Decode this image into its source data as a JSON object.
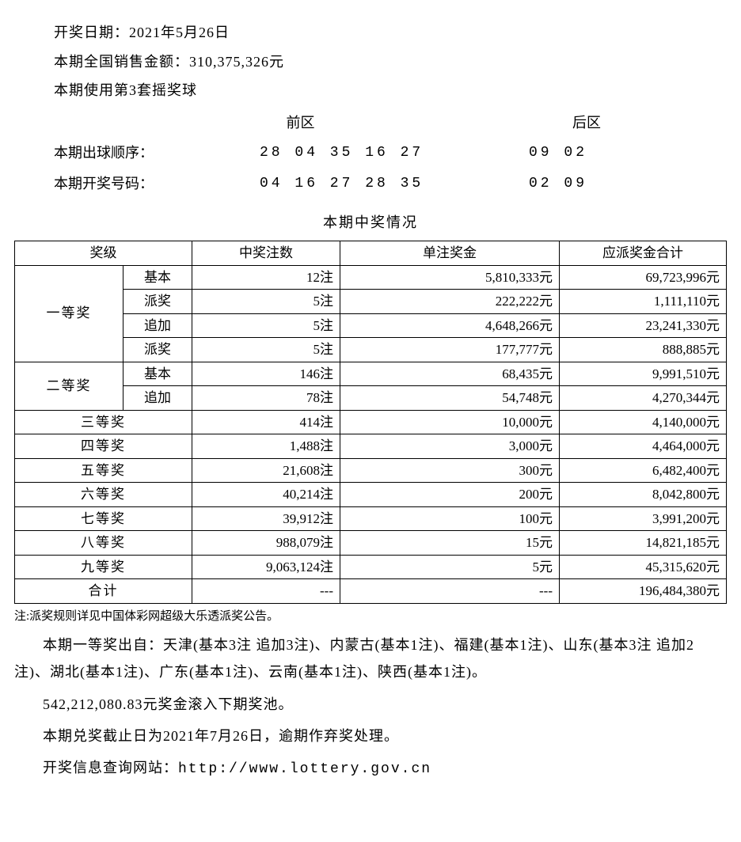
{
  "header": {
    "draw_date_label": "开奖日期：",
    "draw_date_value": "2021年5月26日",
    "sales_label": "本期全国销售金额：",
    "sales_value": "310,375,326元",
    "ballset_line": "本期使用第3套摇奖球"
  },
  "numbers": {
    "front_header": "前区",
    "back_header": "后区",
    "order_label": "本期出球顺序：",
    "order_front": "28 04 35 16 27",
    "order_back": "09 02",
    "result_label": "本期开奖号码：",
    "result_front": "04 16 27 28 35",
    "result_back": "02 09"
  },
  "section_title": "本期中奖情况",
  "table": {
    "headers": {
      "level": "奖级",
      "count": "中奖注数",
      "per": "单注奖金",
      "total": "应派奖金合计"
    },
    "rows": [
      {
        "main": "一等奖",
        "sub": "基本",
        "count": "12注",
        "per": "5,810,333元",
        "total": "69,723,996元",
        "mainRowspan": 4
      },
      {
        "sub": "派奖",
        "count": "5注",
        "per": "222,222元",
        "total": "1,111,110元"
      },
      {
        "sub": "追加",
        "count": "5注",
        "per": "4,648,266元",
        "total": "23,241,330元"
      },
      {
        "sub": "派奖",
        "count": "5注",
        "per": "177,777元",
        "total": "888,885元"
      },
      {
        "main": "二等奖",
        "sub": "基本",
        "count": "146注",
        "per": "68,435元",
        "total": "9,991,510元",
        "mainRowspan": 2
      },
      {
        "sub": "追加",
        "count": "78注",
        "per": "54,748元",
        "total": "4,270,344元"
      },
      {
        "main": "三等奖",
        "colspan": 2,
        "count": "414注",
        "per": "10,000元",
        "total": "4,140,000元"
      },
      {
        "main": "四等奖",
        "colspan": 2,
        "count": "1,488注",
        "per": "3,000元",
        "total": "4,464,000元"
      },
      {
        "main": "五等奖",
        "colspan": 2,
        "count": "21,608注",
        "per": "300元",
        "total": "6,482,400元"
      },
      {
        "main": "六等奖",
        "colspan": 2,
        "count": "40,214注",
        "per": "200元",
        "total": "8,042,800元"
      },
      {
        "main": "七等奖",
        "colspan": 2,
        "count": "39,912注",
        "per": "100元",
        "total": "3,991,200元"
      },
      {
        "main": "八等奖",
        "colspan": 2,
        "count": "988,079注",
        "per": "15元",
        "total": "14,821,185元"
      },
      {
        "main": "九等奖",
        "colspan": 2,
        "count": "9,063,124注",
        "per": "5元",
        "total": "45,315,620元"
      },
      {
        "main": "合计",
        "colspan": 2,
        "count": "---",
        "per": "---",
        "total": "196,484,380元"
      }
    ]
  },
  "footnote": "注:派奖规则详见中国体彩网超级大乐透派奖公告。",
  "paragraphs": {
    "winners": "本期一等奖出自：天津(基本3注 追加3注)、内蒙古(基本1注)、福建(基本1注)、山东(基本3注 追加2注)、湖北(基本1注)、广东(基本1注)、云南(基本1注)、陕西(基本1注)。",
    "rollover": "542,212,080.83元奖金滚入下期奖池。",
    "deadline": "本期兑奖截止日为2021年7月26日，逾期作弃奖处理。",
    "website_label": "开奖信息查询网站：",
    "website_url": "http://www.lottery.gov.cn"
  },
  "style": {
    "border_color": "#000000",
    "background_color": "#ffffff",
    "text_color": "#000000",
    "font_size_body": 18,
    "font_size_table": 17,
    "font_size_footnote": 15
  }
}
